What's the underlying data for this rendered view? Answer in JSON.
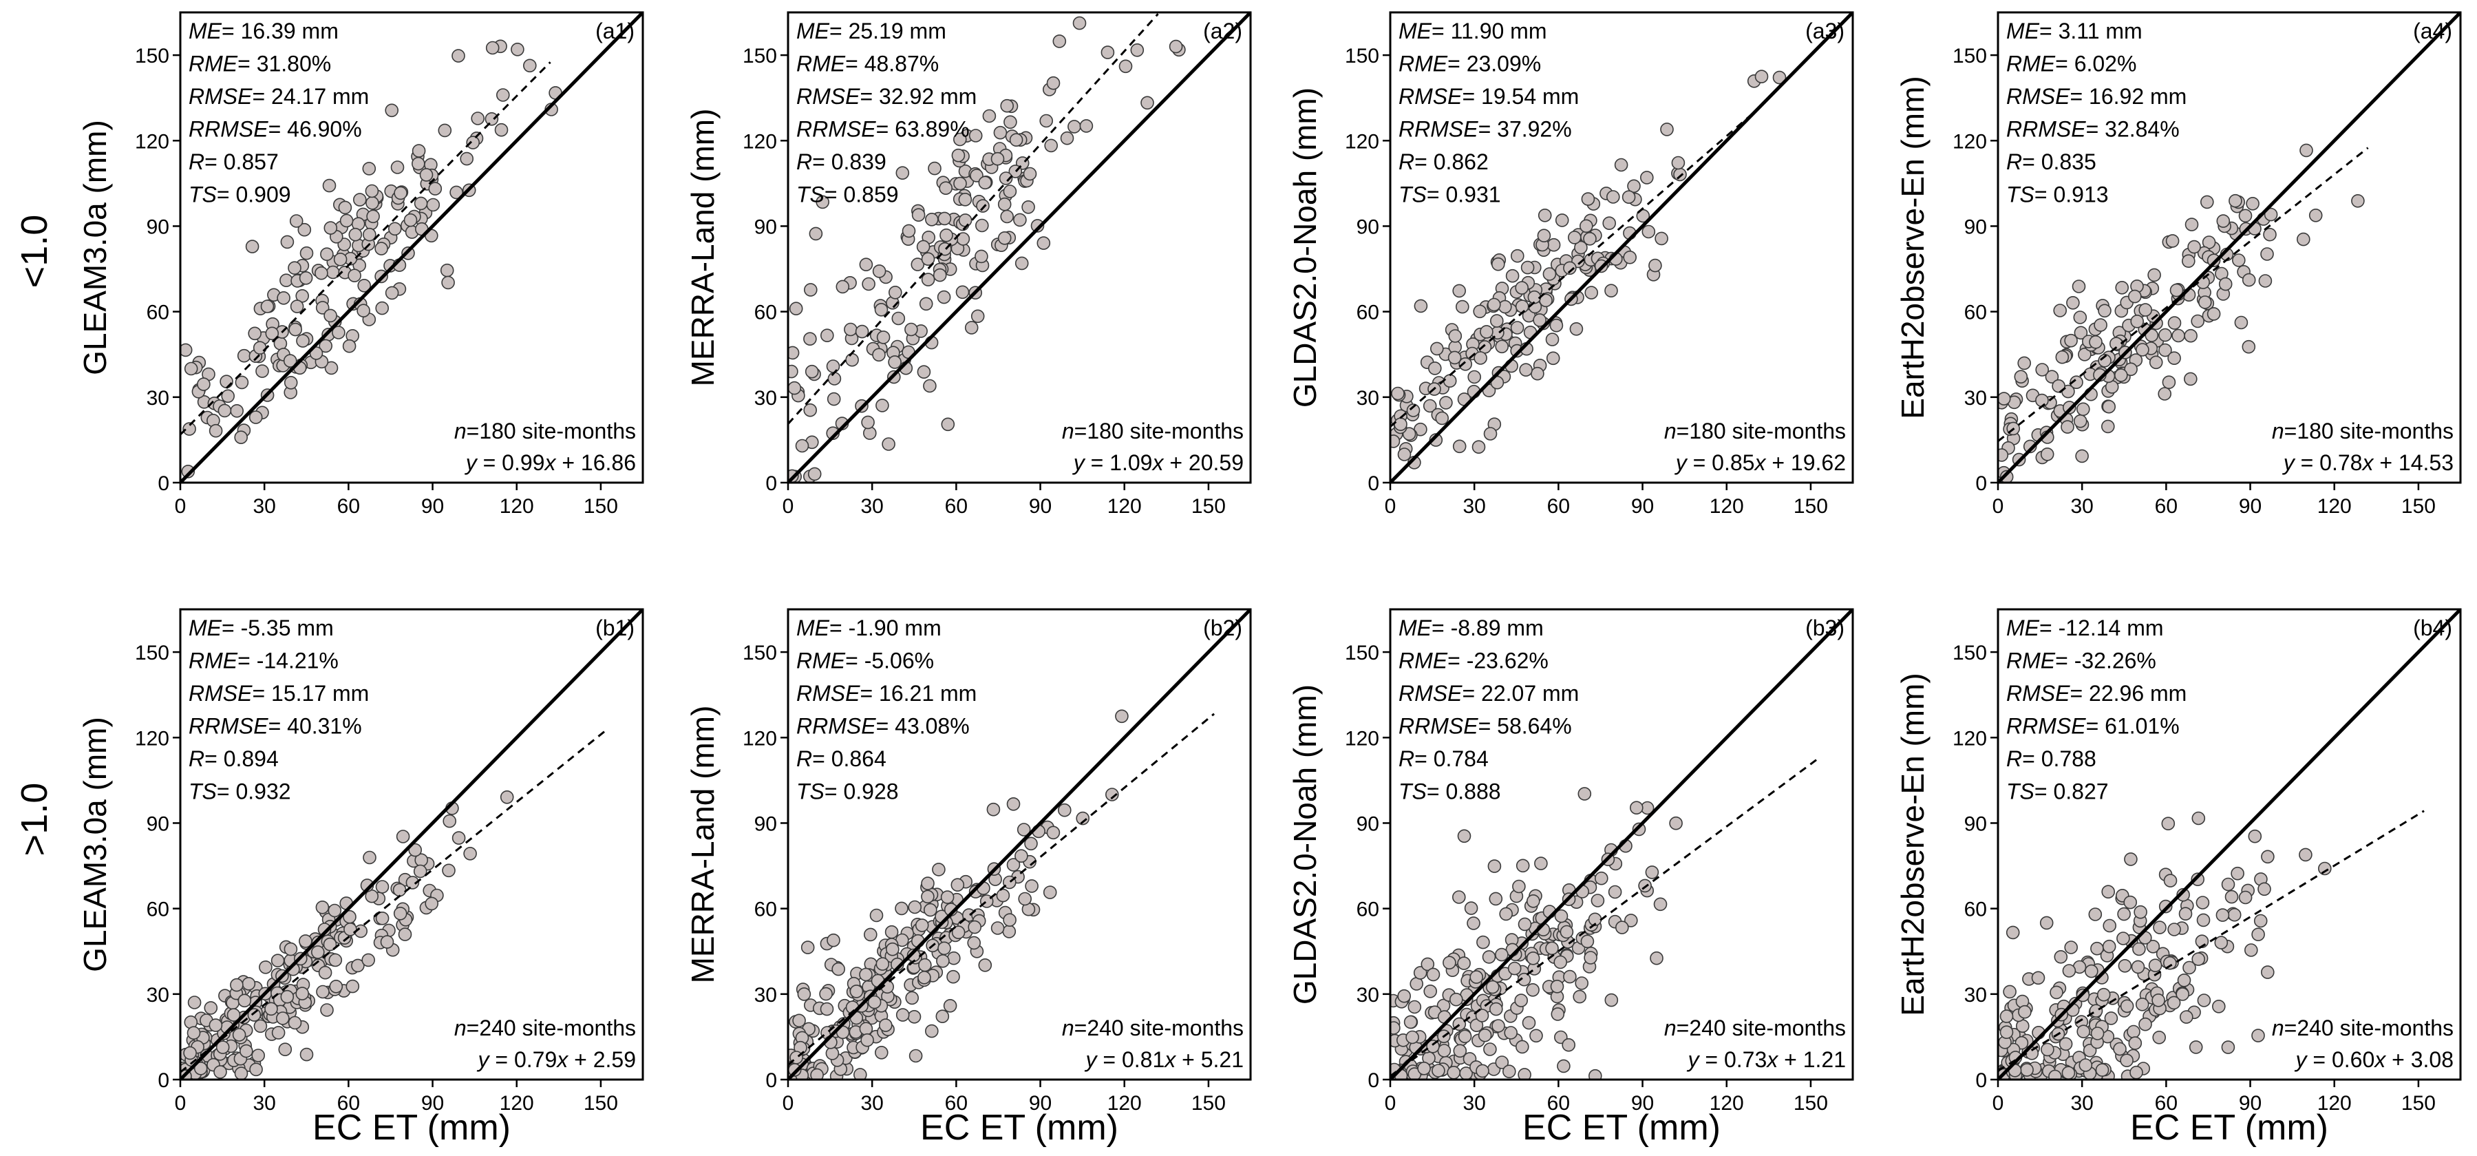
{
  "chart_data": {
    "type": "scatter",
    "x_label": "EC ET (mm)",
    "row_labels": [
      "<1.0",
      ">1.0"
    ],
    "xlim": [
      0,
      165
    ],
    "ylim": [
      0,
      165
    ],
    "ticks": [
      0,
      30,
      60,
      90,
      120,
      150
    ],
    "one_to_one_line": true,
    "panels": [
      {
        "id": "a1",
        "tag": "(a1)",
        "row": 0,
        "col": 0,
        "ylabel": "GLEAM3.0a (mm)",
        "stats": [
          "= 16.39 mm",
          "= 31.80%",
          "= 24.17 mm",
          "= 46.90%",
          "= 0.857",
          "= 0.909"
        ],
        "n_text": "=180 site-months",
        "eq_slope": "0.99",
        "eq_intercept": "16.86",
        "slope": 0.99,
        "intercept": 16.86,
        "fit_xmax": 132,
        "n_points": 180,
        "x_mean": 52,
        "x_spread": 30,
        "noise": 15
      },
      {
        "id": "a2",
        "tag": "(a2)",
        "row": 0,
        "col": 1,
        "ylabel": "MERRA-Land (mm)",
        "stats": [
          "= 25.19 mm",
          "= 48.87%",
          "= 32.92 mm",
          "= 63.89%",
          "= 0.839",
          "= 0.859"
        ],
        "n_text": "=180 site-months",
        "eq_slope": "1.09",
        "eq_intercept": "20.59",
        "slope": 1.09,
        "intercept": 20.59,
        "fit_xmax": 132,
        "n_points": 180,
        "x_mean": 52,
        "x_spread": 30,
        "noise": 20
      },
      {
        "id": "a3",
        "tag": "(a3)",
        "row": 0,
        "col": 2,
        "ylabel": "GLDAS2.0-Noah (mm)",
        "stats": [
          "= 11.90 mm",
          "= 23.09%",
          "= 19.54 mm",
          "= 37.92%",
          "= 0.862",
          "= 0.931"
        ],
        "n_text": "=180 site-months",
        "eq_slope": "0.85",
        "eq_intercept": "19.62",
        "slope": 0.85,
        "intercept": 19.62,
        "fit_xmax": 132,
        "n_points": 180,
        "x_mean": 52,
        "x_spread": 30,
        "noise": 13
      },
      {
        "id": "a4",
        "tag": "(a4)",
        "row": 0,
        "col": 3,
        "ylabel": "EartH2observe-En (mm)",
        "stats": [
          "= 3.11 mm",
          "= 6.02%",
          "= 16.92 mm",
          "= 32.84%",
          "= 0.835",
          "= 0.913"
        ],
        "n_text": "=180 site-months",
        "eq_slope": "0.78",
        "eq_intercept": "14.53",
        "slope": 0.78,
        "intercept": 14.53,
        "fit_xmax": 132,
        "n_points": 180,
        "x_mean": 52,
        "x_spread": 30,
        "noise": 13
      },
      {
        "id": "b1",
        "tag": "(b1)",
        "row": 1,
        "col": 0,
        "ylabel": "GLEAM3.0a (mm)",
        "stats": [
          "= -5.35 mm",
          "= -14.21%",
          "= 15.17 mm",
          "= 40.31%",
          "= 0.894",
          "= 0.932"
        ],
        "n_text": "=240 site-months",
        "eq_slope": "0.79",
        "eq_intercept": "2.59",
        "slope": 0.79,
        "intercept": 2.59,
        "fit_xmax": 152,
        "n_points": 240,
        "x_mean": 36,
        "x_spread": 28,
        "noise": 10
      },
      {
        "id": "b2",
        "tag": "(b2)",
        "row": 1,
        "col": 1,
        "ylabel": "MERRA-Land (mm)",
        "stats": [
          "= -1.90 mm",
          "= -5.06%",
          "= 16.21 mm",
          "= 43.08%",
          "= 0.864",
          "= 0.928"
        ],
        "n_text": "=240 site-months",
        "eq_slope": "0.81",
        "eq_intercept": "5.21",
        "slope": 0.81,
        "intercept": 5.21,
        "fit_xmax": 152,
        "n_points": 240,
        "x_mean": 36,
        "x_spread": 28,
        "noise": 12
      },
      {
        "id": "b3",
        "tag": "(b3)",
        "row": 1,
        "col": 2,
        "ylabel": "GLDAS2.0-Noah (mm)",
        "stats": [
          "= -8.89 mm",
          "= -23.62%",
          "= 22.07 mm",
          "= 58.64%",
          "= 0.784",
          "= 0.888"
        ],
        "n_text": "=240 site-months",
        "eq_slope": "0.73",
        "eq_intercept": "1.21",
        "slope": 0.73,
        "intercept": 1.21,
        "fit_xmax": 152,
        "n_points": 240,
        "x_mean": 36,
        "x_spread": 28,
        "noise": 17
      },
      {
        "id": "b4",
        "tag": "(b4)",
        "row": 1,
        "col": 3,
        "ylabel": "EartH2observe-En (mm)",
        "stats": [
          "= -12.14 mm",
          "= -32.26%",
          "= 22.96 mm",
          "= 61.01%",
          "= 0.788",
          "= 0.827"
        ],
        "n_text": "=240 site-months",
        "eq_slope": "0.60",
        "eq_intercept": "3.08",
        "slope": 0.6,
        "intercept": 3.08,
        "fit_xmax": 152,
        "n_points": 240,
        "x_mean": 36,
        "x_spread": 28,
        "noise": 17
      }
    ],
    "stat_names": [
      "ME",
      "RME",
      "RMSE",
      "RRMSE",
      "R",
      "TS"
    ]
  },
  "colors": {
    "marker_fill": "#c9c0bf",
    "marker_stroke": "#3a3a3a",
    "line": "#000000"
  }
}
